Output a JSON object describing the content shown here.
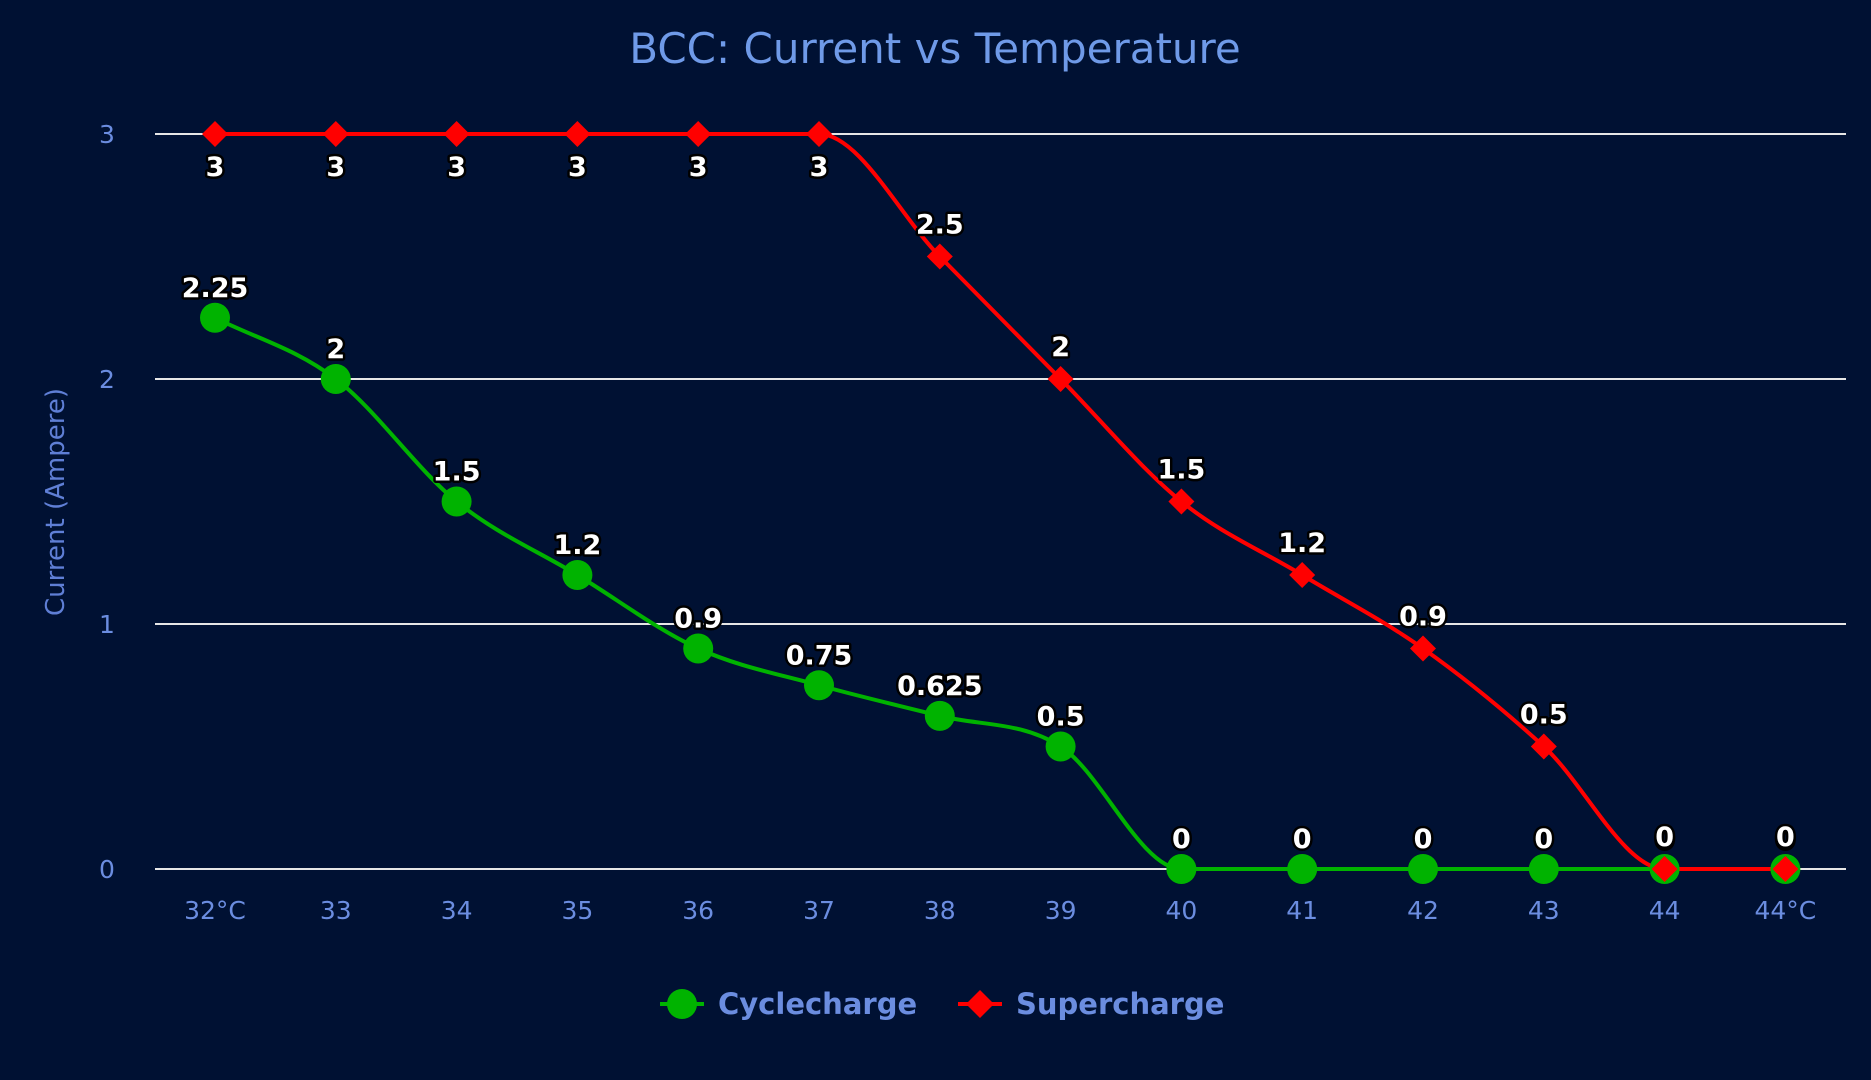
{
  "chart_data": {
    "type": "line",
    "title": "BCC: Current vs Temperature",
    "xlabel": "",
    "ylabel": "Current (Ampere)",
    "categories": [
      "32°C",
      "33",
      "34",
      "35",
      "36",
      "37",
      "38",
      "39",
      "40",
      "41",
      "42",
      "43",
      "44",
      "44°C"
    ],
    "ylim": [
      0,
      3
    ],
    "yticks": [
      "0",
      "1",
      "2",
      "3"
    ],
    "grid": true,
    "smooth": true,
    "legend_position": "bottom",
    "series": [
      {
        "name": "Cyclecharge",
        "color": "#00b300",
        "marker": "circle",
        "values": [
          2.25,
          2,
          1.5,
          1.2,
          0.9,
          0.75,
          0.625,
          0.5,
          0,
          0,
          0,
          0,
          0,
          0
        ],
        "labels": [
          "2.25",
          "2",
          "1.5",
          "1.2",
          "0.9",
          "0.75",
          "0.625",
          "0.5",
          "0",
          "0",
          "0",
          "0",
          "0",
          "0"
        ]
      },
      {
        "name": "Supercharge",
        "color": "#ff0000",
        "marker": "diamond",
        "values": [
          3,
          3,
          3,
          3,
          3,
          3,
          2.5,
          2,
          1.5,
          1.2,
          0.9,
          0.5,
          0,
          0
        ],
        "labels": [
          "3",
          "3",
          "3",
          "3",
          "3",
          "3",
          "2.5",
          "2",
          "1.5",
          "1.2",
          "0.9",
          "0.5",
          "0",
          "0"
        ]
      }
    ]
  }
}
